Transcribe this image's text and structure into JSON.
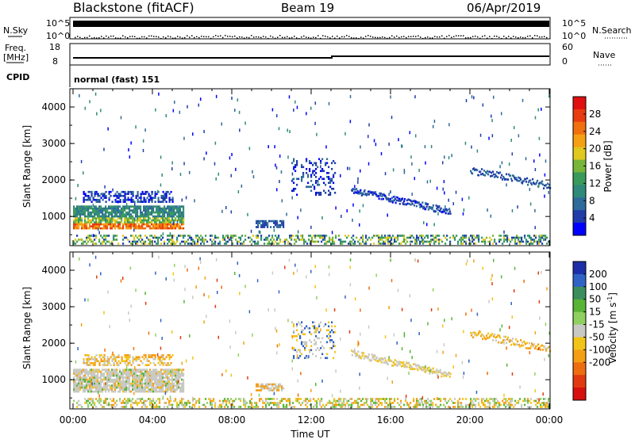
{
  "header": {
    "station": "Blackstone (fitACF)",
    "beam": "Beam 19",
    "date": "06/Apr/2019"
  },
  "aux_panels": {
    "nsky_label": "N.Sky",
    "nsearch_label": "N.Search",
    "count_ticks": [
      "10^5",
      "10^0"
    ],
    "freq_label": "Freq.",
    "freq_unit": "[MHz]",
    "freq_ticks": [
      "18",
      "8"
    ],
    "nave_label": "Nave",
    "nave_ticks": [
      "60",
      "0"
    ],
    "cpid_label": "CPID",
    "cpid_value": "normal (fast) 151"
  },
  "chart_data": [
    {
      "type": "heatmap",
      "name": "power",
      "ylabel": "Slant Range [km]",
      "xlabel": "",
      "yticks": [
        "1000",
        "2000",
        "3000",
        "4000"
      ],
      "ylim": [
        200,
        4500
      ],
      "colorbar": {
        "label": "Power [dB]",
        "ticks": [
          "4",
          "8",
          "12",
          "16",
          "20",
          "24",
          "28"
        ],
        "colors": [
          "#0000ff",
          "#1f3ca8",
          "#2e6b9a",
          "#2f8a7a",
          "#3a9a5a",
          "#78b63a",
          "#e0c81e",
          "#f5a014",
          "#f07010",
          "#e83c10",
          "#e01010"
        ]
      }
    },
    {
      "type": "heatmap",
      "name": "velocity",
      "ylabel": "Slant Range [km]",
      "xlabel": "Time UT",
      "xticks": [
        "00:00",
        "04:00",
        "08:00",
        "12:00",
        "16:00",
        "20:00",
        "00:00"
      ],
      "yticks": [
        "1000",
        "2000",
        "3000",
        "4000"
      ],
      "ylim": [
        200,
        4500
      ],
      "colorbar": {
        "label": "Velocity [m s",
        "label_sup": "-1",
        "label_end": "]",
        "ticks": [
          "200",
          "100",
          "50",
          "15",
          "-15",
          "-50",
          "-100",
          "-200"
        ],
        "colors": [
          "#1c2fa8",
          "#2f63c6",
          "#3b8d5e",
          "#58b435",
          "#8fd060",
          "#c8c8c4",
          "#f2c418",
          "#f59e14",
          "#ee6d10",
          "#e23a10",
          "#d80f0f"
        ]
      }
    }
  ]
}
